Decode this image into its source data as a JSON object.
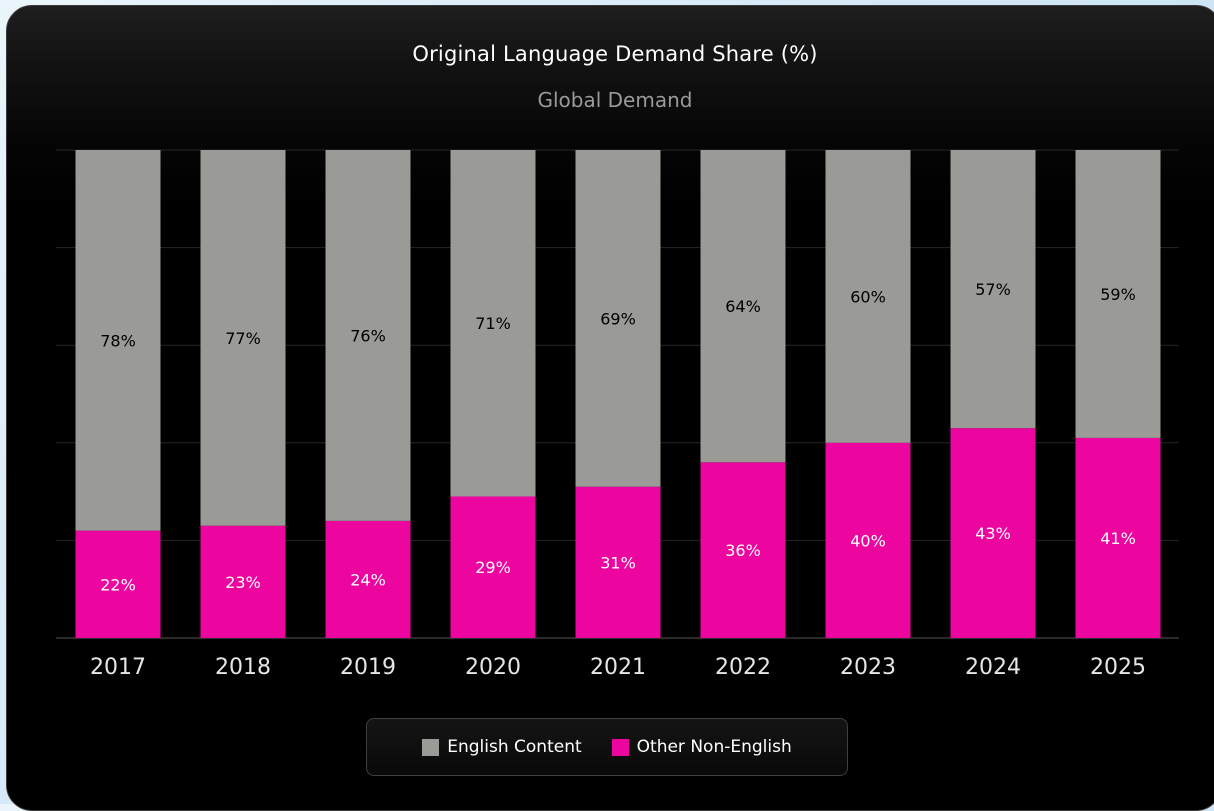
{
  "chart_data": {
    "type": "bar",
    "stacked": true,
    "title": "Original Language Demand Share (%)",
    "subtitle": "Global Demand",
    "categories": [
      "2017",
      "2018",
      "2019",
      "2020",
      "2021",
      "2022",
      "2023",
      "2024",
      "2025"
    ],
    "series": [
      {
        "name": "Other Non-English",
        "color": "#ec059f",
        "label_color": "#ffffff",
        "values": [
          22,
          23,
          24,
          29,
          31,
          36,
          40,
          43,
          41
        ]
      },
      {
        "name": "English Content",
        "color": "#9a9b97",
        "label_color": "#000000",
        "values": [
          78,
          77,
          76,
          71,
          69,
          64,
          60,
          57,
          59
        ]
      }
    ],
    "value_suffix": "%",
    "ylim": [
      0,
      100
    ],
    "grid": true,
    "legend_position": "bottom"
  }
}
